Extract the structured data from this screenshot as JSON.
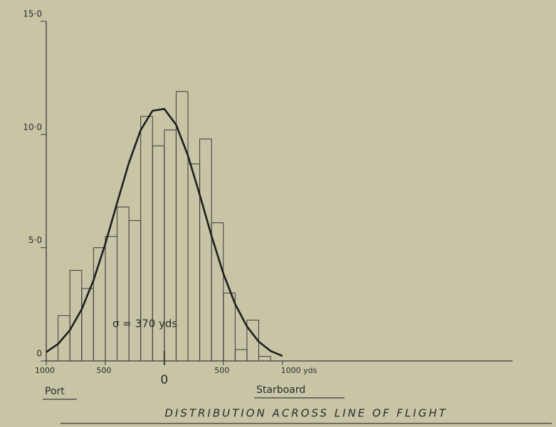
{
  "chart_data": {
    "type": "histogram",
    "title": "DISTRIBUTION ACROSS LINE OF FLIGHT",
    "annotation": "σ = 370 yds",
    "x_left_label": "Port",
    "x_right_label": "Starboard",
    "color": "#3a3a3a",
    "bins": [
      -900,
      -800,
      -700,
      -600,
      -500,
      -400,
      -300,
      -200,
      -100,
      0,
      100,
      200,
      300,
      400,
      500,
      600,
      700,
      800,
      900
    ],
    "values": [
      2.0,
      4.0,
      3.2,
      5.0,
      5.5,
      6.8,
      6.2,
      10.8,
      9.5,
      10.2,
      11.9,
      8.7,
      9.8,
      6.1,
      3.0,
      0.5,
      1.8,
      0.2
    ],
    "fit": {
      "type": "line",
      "color": "#1e1e1e",
      "x": [
        -1000,
        -900,
        -800,
        -700,
        -600,
        -500,
        -400,
        -300,
        -200,
        -100,
        0,
        100,
        200,
        300,
        400,
        500,
        600,
        700,
        800,
        900,
        1000
      ],
      "values": [
        0.39,
        0.75,
        1.36,
        2.28,
        3.56,
        5.17,
        6.98,
        8.75,
        10.2,
        11.05,
        11.13,
        10.43,
        9.07,
        7.34,
        5.52,
        3.86,
        2.51,
        1.52,
        0.85,
        0.44,
        0.22
      ]
    },
    "xlim": [
      -1000,
      2950
    ],
    "xticks": [
      {
        "value": -1000,
        "label": "1000"
      },
      {
        "value": -500,
        "label": "500"
      },
      0,
      500,
      {
        "value": 1000,
        "label": "1000 yds"
      }
    ],
    "ylim": [
      0,
      15
    ],
    "yticks": [
      0,
      {
        "value": 5,
        "label": "5·0"
      },
      {
        "value": 10,
        "label": "10·0"
      },
      {
        "value": 15,
        "label": "15·0"
      }
    ]
  }
}
